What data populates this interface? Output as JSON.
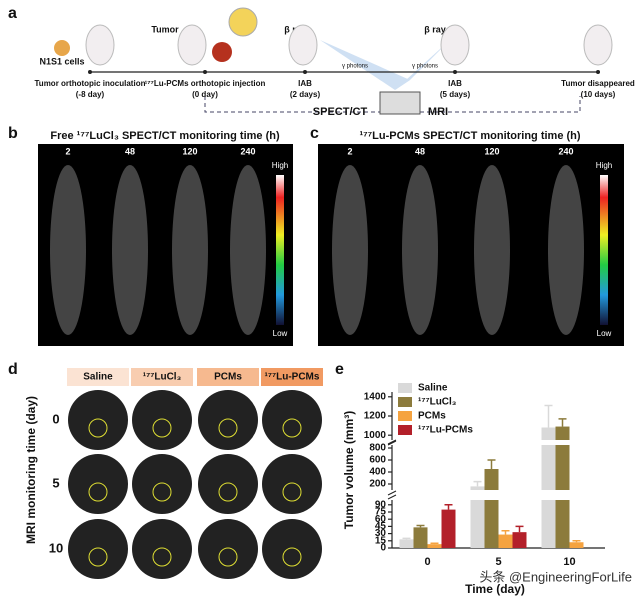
{
  "panel_a": {
    "label": "a",
    "cell": "N1S1 cells",
    "tumor": "Tumor",
    "beta_ray": [
      "β ray",
      "β ray"
    ],
    "gamma": [
      "γ photons",
      "γ photons"
    ],
    "timeline": [
      {
        "event": "Tumor orthotopic inoculation",
        "time": "(-8 day)"
      },
      {
        "event": "¹⁷⁷Lu-PCMs orthotopic injection",
        "time": "(0 day)"
      },
      {
        "event": "IAB",
        "time": "(2 days)"
      },
      {
        "event": "IAB",
        "time": "(5 days)"
      },
      {
        "event": "Tumor disappeared",
        "time": "(10 days)"
      }
    ],
    "imaging": [
      "SPECT/CT",
      "MRI"
    ]
  },
  "panel_b": {
    "label": "b",
    "title": "Free ¹⁷⁷LuCl₃ SPECT/CT monitoring time (h)",
    "times": [
      "2",
      "48",
      "120",
      "240"
    ],
    "scale": [
      "High",
      "Low"
    ]
  },
  "panel_c": {
    "label": "c",
    "title": "¹⁷⁷Lu-PCMs SPECT/CT monitoring time (h)",
    "times": [
      "2",
      "48",
      "120",
      "240"
    ],
    "scale": [
      "High",
      "Low"
    ]
  },
  "panel_d": {
    "label": "d",
    "groups": [
      "Saline",
      "¹⁷⁷LuCl₃",
      "PCMs",
      "¹⁷⁷Lu-PCMs"
    ],
    "y_label": "MRI monitoring time (day)",
    "rows": [
      "0",
      "5",
      "10"
    ]
  },
  "chart_data": {
    "type": "bar",
    "label": "e",
    "y_label": "Tumor volume (mm³)",
    "x_label": "Time (day)",
    "categories": [
      "0",
      "5",
      "10"
    ],
    "series": [
      {
        "name": "Saline",
        "color": "#d9d9d9",
        "values": [
          18,
          160,
          1080
        ],
        "errors": [
          2,
          80,
          230
        ]
      },
      {
        "name": "¹⁷⁷LuCl₃",
        "color": "#8c7b3c",
        "values": [
          43,
          450,
          1090
        ],
        "errors": [
          4,
          150,
          80
        ]
      },
      {
        "name": "PCMs",
        "color": "#f5a340",
        "values": [
          8,
          28,
          12
        ],
        "errors": [
          2,
          8,
          3
        ]
      },
      {
        "name": "¹⁷⁷Lu-PCMs",
        "color": "#b3202a",
        "values": [
          80,
          33,
          0
        ],
        "errors": [
          10,
          12,
          0
        ]
      }
    ],
    "y_segments": [
      {
        "ylim": [
          0,
          100
        ],
        "yticks": [
          0,
          15,
          30,
          45,
          60,
          75,
          90
        ]
      },
      {
        "ylim": [
          100,
          850
        ],
        "yticks": [
          200,
          400,
          600,
          800
        ]
      },
      {
        "ylim": [
          950,
          1450
        ],
        "yticks": [
          1000,
          1200,
          1400
        ]
      }
    ]
  },
  "watermark": "头条 @EngineeringForLife"
}
